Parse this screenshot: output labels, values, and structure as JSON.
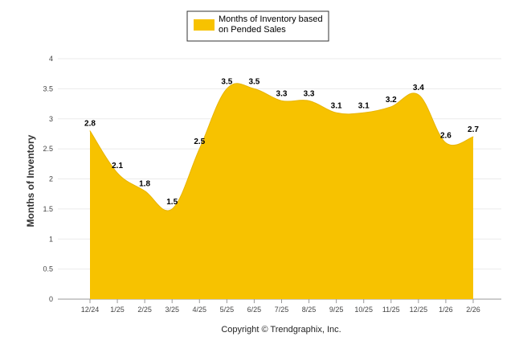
{
  "chart_data": {
    "type": "area",
    "title": "",
    "xlabel": "",
    "ylabel": "Months of Inventory",
    "ylim": [
      0,
      4
    ],
    "yticks": [
      "0",
      "0.5",
      "1",
      "1.5",
      "2",
      "2.5",
      "3",
      "3.5",
      "4"
    ],
    "grid": true,
    "legend_position": "top-center",
    "categories": [
      "12/24",
      "1/25",
      "2/25",
      "3/25",
      "4/25",
      "5/25",
      "6/25",
      "7/25",
      "8/25",
      "9/25",
      "10/25",
      "11/25",
      "12/25",
      "1/26",
      "2/26"
    ],
    "series": [
      {
        "name": "Months of Inventory based on Pended Sales",
        "legend_lines": [
          "Months of Inventory based",
          "on Pended Sales"
        ],
        "color": "#F7C200",
        "values": [
          2.8,
          2.1,
          1.8,
          1.5,
          2.5,
          3.5,
          3.5,
          3.3,
          3.3,
          3.1,
          3.1,
          3.2,
          3.4,
          2.6,
          2.7
        ],
        "labels": [
          "2.8",
          "2.1",
          "1.8",
          "1.5",
          "2.5",
          "3.5",
          "3.5",
          "3.3",
          "3.3",
          "3.1",
          "3.1",
          "3.2",
          "3.4",
          "2.6",
          "2.7"
        ]
      }
    ]
  },
  "footer": {
    "copyright": "Copyright © Trendgraphix, Inc."
  }
}
